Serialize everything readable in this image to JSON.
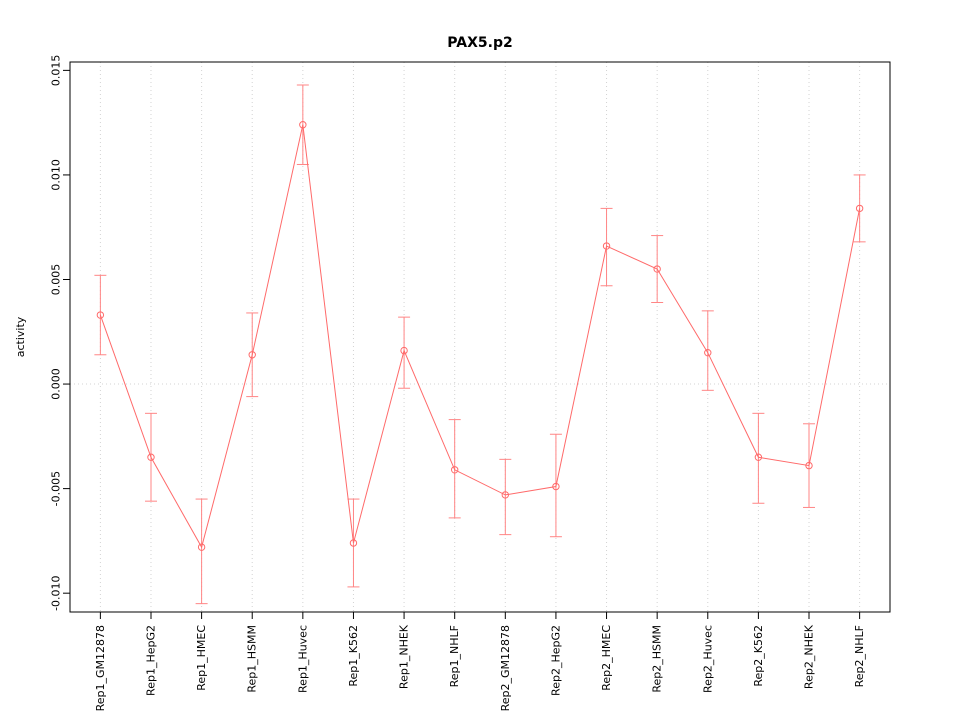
{
  "chart_data": {
    "type": "line",
    "title": "PAX5.p2",
    "ylabel": "activity",
    "xlabel": "",
    "legend": "none",
    "categories": [
      "Rep1_GM12878",
      "Rep1_HepG2",
      "Rep1_HMEC",
      "Rep1_HSMM",
      "Rep1_Huvec",
      "Rep1_K562",
      "Rep1_NHEK",
      "Rep1_NHLF",
      "Rep2_GM12878",
      "Rep2_HepG2",
      "Rep2_HMEC",
      "Rep2_HSMM",
      "Rep2_Huvec",
      "Rep2_K562",
      "Rep2_NHEK",
      "Rep2_NHLF"
    ],
    "series": [
      {
        "name": "activity",
        "values": [
          0.0033,
          -0.0035,
          -0.0078,
          0.0014,
          0.0124,
          -0.0076,
          0.0016,
          -0.0041,
          -0.0053,
          -0.0049,
          0.0066,
          0.0055,
          0.0015,
          -0.0035,
          -0.0039,
          0.0084
        ],
        "error_upper": [
          0.0052,
          -0.0014,
          -0.0055,
          0.0034,
          0.0143,
          -0.0055,
          0.0032,
          -0.0017,
          -0.0036,
          -0.0024,
          0.0084,
          0.0071,
          0.0035,
          -0.0014,
          -0.0019,
          0.01
        ],
        "error_lower": [
          0.0014,
          -0.0056,
          -0.0105,
          -0.0006,
          0.0105,
          -0.0097,
          -0.0002,
          -0.0064,
          -0.0072,
          -0.0073,
          0.0047,
          0.0039,
          -0.0003,
          -0.0057,
          -0.0059,
          0.0068
        ]
      }
    ],
    "ylim": [
      -0.0109,
      0.0154
    ],
    "yticks": [
      -0.01,
      -0.005,
      0.0,
      0.005,
      0.01,
      0.015
    ],
    "ytick_labels": [
      "-0.010",
      "-0.005",
      "0.000",
      "0.005",
      "0.010",
      "0.015"
    ],
    "grid": {
      "vertical": "per-category",
      "horizontal_at": 0,
      "style": "dotted",
      "color": "#d3d3d3"
    },
    "colors": {
      "line": "#ff6a6a",
      "point": "#ff6a6a",
      "error_bar": "#ff8585",
      "axis": "#000000"
    },
    "marker": "open-circle"
  }
}
